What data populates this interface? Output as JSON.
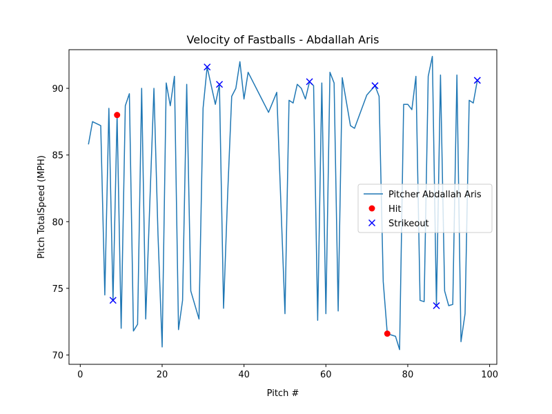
{
  "chart_data": {
    "type": "line",
    "title": "Velocity of Fastballs - Abdallah Aris",
    "xlabel": "Pitch #",
    "ylabel": "Pitch TotalSpeed (MPH)",
    "xlim": [
      -2.75,
      101.75
    ],
    "ylim": [
      69.3,
      92.9
    ],
    "x_ticks": [
      0,
      20,
      40,
      60,
      80,
      100
    ],
    "y_ticks": [
      70,
      75,
      80,
      85,
      90
    ],
    "legend_position": "center-right",
    "series": [
      {
        "name": "Pitcher Abdallah Aris",
        "type": "line",
        "color": "#1f77b4",
        "x": [
          2,
          3,
          5,
          6,
          7,
          8,
          9,
          10,
          11,
          12,
          13,
          14,
          15,
          16,
          17,
          18,
          19,
          20,
          21,
          22,
          23,
          24,
          25,
          26,
          27,
          29,
          30,
          31,
          33,
          34,
          35,
          36,
          37,
          38,
          39,
          40,
          41,
          46,
          48,
          50,
          51,
          52,
          53,
          54,
          55,
          56,
          57,
          58,
          59,
          60,
          61,
          62,
          63,
          64,
          66,
          67,
          70,
          72,
          73,
          74,
          75,
          76,
          77,
          78,
          79,
          80,
          81,
          82,
          83,
          84,
          85,
          86,
          87,
          88,
          89,
          90,
          91,
          92,
          93,
          94,
          95,
          96,
          97
        ],
        "y": [
          85.8,
          87.5,
          87.2,
          74.5,
          88.5,
          74.1,
          88.0,
          72.0,
          88.7,
          89.6,
          71.8,
          72.3,
          90.0,
          72.7,
          81.5,
          90.0,
          79.0,
          70.6,
          90.4,
          88.7,
          90.9,
          71.9,
          74.1,
          90.3,
          74.8,
          72.7,
          88.5,
          91.6,
          88.8,
          90.3,
          73.5,
          82.0,
          89.4,
          90.0,
          92.0,
          89.2,
          91.2,
          88.2,
          89.7,
          73.1,
          89.1,
          88.9,
          90.3,
          90.0,
          89.2,
          90.5,
          90.2,
          72.6,
          90.4,
          73.1,
          91.2,
          90.4,
          73.3,
          90.8,
          87.2,
          87.0,
          89.5,
          90.2,
          89.4,
          75.5,
          71.6,
          71.5,
          71.4,
          70.4,
          88.8,
          88.8,
          88.4,
          90.9,
          74.1,
          74.0,
          90.9,
          92.4,
          73.7,
          91.0,
          74.8,
          73.7,
          73.8,
          91.0,
          71.0,
          73.1,
          89.1,
          88.9,
          90.6
        ]
      },
      {
        "name": "Hit",
        "type": "scatter",
        "marker": "circle",
        "color": "#ff0000",
        "x": [
          9,
          75
        ],
        "y": [
          88.0,
          71.6
        ]
      },
      {
        "name": "Strikeout",
        "type": "scatter",
        "marker": "x",
        "color": "#0000ff",
        "x": [
          8,
          31,
          34,
          56,
          72,
          87,
          97
        ],
        "y": [
          74.1,
          91.6,
          90.3,
          90.5,
          90.2,
          73.7,
          90.6
        ]
      }
    ]
  }
}
